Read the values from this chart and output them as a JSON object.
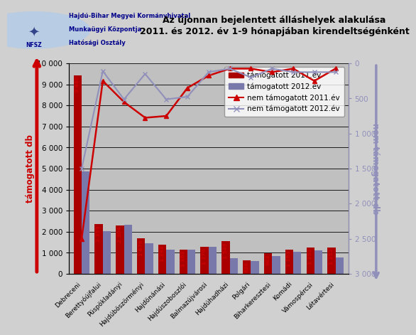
{
  "categories": [
    "Debreceni",
    "Berettyóújfalui",
    "Püspökladányi",
    "Hajdúböszörményi",
    "Hajdönánási",
    "Hajdúszoboszlói",
    "Balmazújvárosi",
    "Hajdúhadházi",
    "Polgári",
    "Biharkeresztesi",
    "Komádi",
    "Vámospércsi",
    "Létavértesi"
  ],
  "tamogatott_2011": [
    9440,
    2359,
    2304,
    1676,
    1394,
    1162,
    1270,
    1549,
    630,
    983,
    1163,
    1252,
    1252
  ],
  "tamogatott_2012": [
    4875,
    2020,
    2318,
    1459,
    1145,
    1142,
    1296,
    758,
    600,
    858,
    1057,
    1109,
    793
  ],
  "nem_tamogatott_2011_right": [
    2500,
    250,
    550,
    775,
    750,
    350,
    175,
    75,
    75,
    125,
    75,
    250,
    75
  ],
  "nem_tamogatott_2012_right": [
    1500,
    110,
    513,
    150,
    513,
    475,
    125,
    75,
    200,
    75,
    125,
    125,
    125
  ],
  "title_line1": "Az újonnan bejelentett álláshelyek alakulása",
  "title_line2": "2011. és 2012. év 1-9 hónapjában kirendeltségénként",
  "ylabel_left": "támogatott db",
  "ylabel_right": "nem támogatott db",
  "legend_tamogatott_2011": "támogatott 2011.év",
  "legend_tamogatott_2012": "támogatott 2012.év",
  "legend_nem_tamogatott_2011": "nem támogatott 2011.év",
  "legend_nem_tamogatott_2012": "nem támogatott 2012.év",
  "bar_color_2011": "#aa0000",
  "bar_color_2012": "#7878aa",
  "line_color_2011": "#cc0000",
  "line_color_2012": "#9090bb",
  "bg_color": "#c0c0c0",
  "fig_bg": "#d0d0d0",
  "header_bg": "#ffffff",
  "header_text_color": "#00008b",
  "yticks_left": [
    0,
    1000,
    2000,
    3000,
    4000,
    5000,
    6000,
    7000,
    8000,
    9000,
    10000
  ],
  "yticks_right": [
    0,
    500,
    1000,
    1500,
    2000,
    2500,
    3000
  ],
  "left_axis_arrow_color": "#cc0000",
  "right_axis_arrow_color": "#9090bb"
}
